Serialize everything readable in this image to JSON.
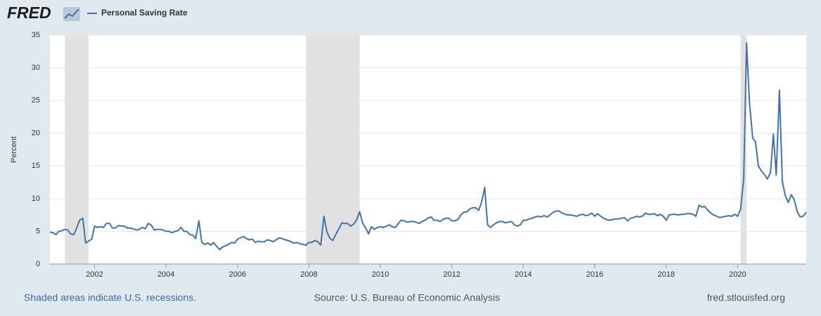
{
  "header": {
    "logo": "FRED"
  },
  "chart_data": {
    "type": "line",
    "y_label": "Percent",
    "xlim": [
      2000.75,
      2021.92
    ],
    "ylim": [
      0,
      35
    ],
    "xticks": [
      2002,
      2004,
      2006,
      2008,
      2010,
      2012,
      2014,
      2016,
      2018,
      2020
    ],
    "yticks": [
      0,
      5,
      10,
      15,
      20,
      25,
      30,
      35
    ],
    "grid": true,
    "recessions": [
      [
        2001.17,
        2001.83
      ],
      [
        2007.92,
        2009.42
      ],
      [
        2020.08,
        2020.25
      ]
    ],
    "x": [
      2000.75,
      2000.83,
      2000.92,
      2001,
      2001.08,
      2001.17,
      2001.25,
      2001.33,
      2001.42,
      2001.5,
      2001.58,
      2001.67,
      2001.75,
      2001.83,
      2001.92,
      2002,
      2002.08,
      2002.17,
      2002.25,
      2002.33,
      2002.42,
      2002.5,
      2002.58,
      2002.67,
      2002.75,
      2002.83,
      2002.92,
      2003,
      2003.08,
      2003.17,
      2003.25,
      2003.33,
      2003.42,
      2003.5,
      2003.58,
      2003.67,
      2003.75,
      2003.83,
      2003.92,
      2004,
      2004.08,
      2004.17,
      2004.25,
      2004.33,
      2004.42,
      2004.5,
      2004.58,
      2004.67,
      2004.75,
      2004.83,
      2004.92,
      2005,
      2005.08,
      2005.17,
      2005.25,
      2005.33,
      2005.42,
      2005.5,
      2005.58,
      2005.67,
      2005.75,
      2005.83,
      2005.92,
      2006,
      2006.08,
      2006.17,
      2006.25,
      2006.33,
      2006.42,
      2006.5,
      2006.58,
      2006.67,
      2006.75,
      2006.83,
      2006.92,
      2007,
      2007.08,
      2007.17,
      2007.25,
      2007.33,
      2007.42,
      2007.5,
      2007.58,
      2007.67,
      2007.75,
      2007.83,
      2007.92,
      2008,
      2008.08,
      2008.17,
      2008.25,
      2008.33,
      2008.42,
      2008.5,
      2008.58,
      2008.67,
      2008.75,
      2008.83,
      2008.92,
      2009,
      2009.08,
      2009.17,
      2009.25,
      2009.33,
      2009.42,
      2009.5,
      2009.58,
      2009.67,
      2009.75,
      2009.83,
      2009.92,
      2010,
      2010.08,
      2010.17,
      2010.25,
      2010.33,
      2010.42,
      2010.5,
      2010.58,
      2010.67,
      2010.75,
      2010.83,
      2010.92,
      2011,
      2011.08,
      2011.17,
      2011.25,
      2011.33,
      2011.42,
      2011.5,
      2011.58,
      2011.67,
      2011.75,
      2011.83,
      2011.92,
      2012,
      2012.08,
      2012.17,
      2012.25,
      2012.33,
      2012.42,
      2012.5,
      2012.58,
      2012.67,
      2012.75,
      2012.83,
      2012.92,
      2013,
      2013.08,
      2013.17,
      2013.25,
      2013.33,
      2013.42,
      2013.5,
      2013.58,
      2013.67,
      2013.75,
      2013.83,
      2013.92,
      2014,
      2014.08,
      2014.17,
      2014.25,
      2014.33,
      2014.42,
      2014.5,
      2014.58,
      2014.67,
      2014.75,
      2014.83,
      2014.92,
      2015,
      2015.08,
      2015.17,
      2015.25,
      2015.33,
      2015.42,
      2015.5,
      2015.58,
      2015.67,
      2015.75,
      2015.83,
      2015.92,
      2016,
      2016.08,
      2016.17,
      2016.25,
      2016.33,
      2016.42,
      2016.5,
      2016.58,
      2016.67,
      2016.75,
      2016.83,
      2016.92,
      2017,
      2017.08,
      2017.17,
      2017.25,
      2017.33,
      2017.42,
      2017.5,
      2017.58,
      2017.67,
      2017.75,
      2017.83,
      2017.92,
      2018,
      2018.08,
      2018.17,
      2018.25,
      2018.33,
      2018.42,
      2018.5,
      2018.58,
      2018.67,
      2018.75,
      2018.83,
      2018.92,
      2019,
      2019.08,
      2019.17,
      2019.25,
      2019.33,
      2019.42,
      2019.5,
      2019.58,
      2019.67,
      2019.75,
      2019.83,
      2019.92,
      2020,
      2020.08,
      2020.17,
      2020.25,
      2020.33,
      2020.42,
      2020.5,
      2020.58,
      2020.67,
      2020.75,
      2020.83,
      2020.92,
      2021,
      2021.08,
      2021.17,
      2021.25,
      2021.33,
      2021.42,
      2021.5,
      2021.58,
      2021.67,
      2021.75,
      2021.83,
      2021.92
    ],
    "series": [
      {
        "name": "Personal Saving Rate",
        "color": "#4572a7",
        "values": [
          4.9,
          4.8,
          4.5,
          5.0,
          5.1,
          5.3,
          5.2,
          4.6,
          4.5,
          5.5,
          6.7,
          7.0,
          3.2,
          3.5,
          3.8,
          5.8,
          5.6,
          5.7,
          5.6,
          6.2,
          6.2,
          5.5,
          5.5,
          5.9,
          5.8,
          5.8,
          5.5,
          5.5,
          5.4,
          5.2,
          5.3,
          5.6,
          5.4,
          6.2,
          6.0,
          5.2,
          5.3,
          5.3,
          5.2,
          5.0,
          5.0,
          4.8,
          5.0,
          5.1,
          5.6,
          5.0,
          5.0,
          4.5,
          4.4,
          3.9,
          6.6,
          3.3,
          3.0,
          3.2,
          2.9,
          3.3,
          2.7,
          2.2,
          2.6,
          2.8,
          3.0,
          3.3,
          3.2,
          3.8,
          4.0,
          4.2,
          3.9,
          3.7,
          3.8,
          3.3,
          3.5,
          3.4,
          3.4,
          3.7,
          3.6,
          3.4,
          3.7,
          4.0,
          3.9,
          3.7,
          3.6,
          3.4,
          3.2,
          3.3,
          3.1,
          3.0,
          2.9,
          3.3,
          3.3,
          3.6,
          3.4,
          2.9,
          7.3,
          5.0,
          4.0,
          3.6,
          4.5,
          5.3,
          6.3,
          6.2,
          6.2,
          5.8,
          6.1,
          6.7,
          8.0,
          6.3,
          5.6,
          4.6,
          5.7,
          5.3,
          5.6,
          5.7,
          5.6,
          5.8,
          6.0,
          5.7,
          5.6,
          6.2,
          6.7,
          6.6,
          6.4,
          6.5,
          6.5,
          6.4,
          6.2,
          6.5,
          6.7,
          7.0,
          7.2,
          6.7,
          6.7,
          6.5,
          6.8,
          7.0,
          7.0,
          6.6,
          6.6,
          6.8,
          7.5,
          7.9,
          8.0,
          8.4,
          8.6,
          8.6,
          8.2,
          9.4,
          11.7,
          6.0,
          5.6,
          6.0,
          6.3,
          6.5,
          6.5,
          6.3,
          6.4,
          6.5,
          6.0,
          5.8,
          6.0,
          6.7,
          6.7,
          6.9,
          7.0,
          7.2,
          7.3,
          7.2,
          7.4,
          7.2,
          7.5,
          7.9,
          8.1,
          8.1,
          7.8,
          7.6,
          7.5,
          7.5,
          7.4,
          7.3,
          7.5,
          7.6,
          7.4,
          7.5,
          7.8,
          7.3,
          7.7,
          7.3,
          7.0,
          6.8,
          6.7,
          6.8,
          6.9,
          6.9,
          7.0,
          7.1,
          6.6,
          7.0,
          7.1,
          7.3,
          7.2,
          7.3,
          7.8,
          7.6,
          7.6,
          7.7,
          7.4,
          7.6,
          7.3,
          6.7,
          7.5,
          7.6,
          7.6,
          7.5,
          7.6,
          7.6,
          7.7,
          7.7,
          7.6,
          7.3,
          9.0,
          8.7,
          8.8,
          8.2,
          7.8,
          7.5,
          7.3,
          7.1,
          7.2,
          7.3,
          7.4,
          7.3,
          7.6,
          7.3,
          8.3,
          13.0,
          33.8,
          24.8,
          19.3,
          18.7,
          15.0,
          14.2,
          13.7,
          13.0,
          14.0,
          19.9,
          13.6,
          26.6,
          12.7,
          10.5,
          9.4,
          10.6,
          9.9,
          8.0,
          7.2,
          7.3,
          7.9
        ]
      }
    ]
  },
  "footer": {
    "note": "Shaded areas indicate U.S. recessions.",
    "source": "Source: U.S. Bureau of Economic Analysis",
    "site": "fred.stlouisfed.org"
  }
}
